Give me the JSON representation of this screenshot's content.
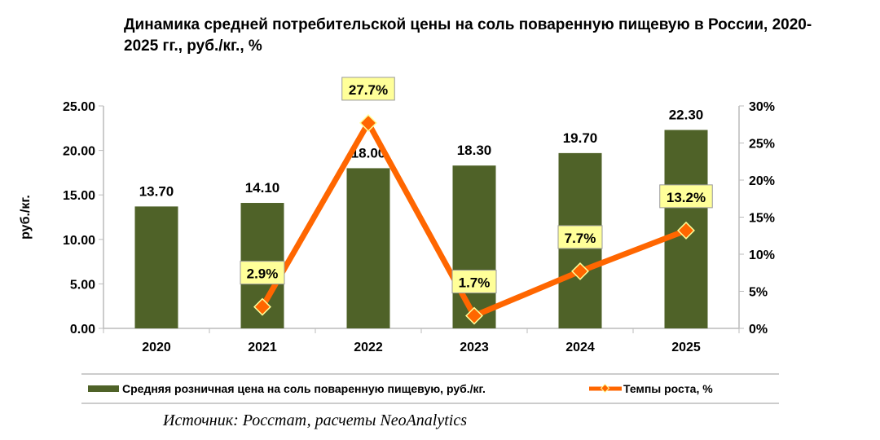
{
  "title": "Динамика средней потребительской цены на соль поваренную пищевую в России, 2020-2025 гг., руб./кг., %",
  "source": "Источник: Росстат, расчеты NeoAnalytics",
  "chart_data": {
    "type": "bar+line",
    "title": "Динамика средней потребительской цены на соль поваренную пищевую в России, 2020-2025 гг., руб./кг., %",
    "categories": [
      "2020",
      "2021",
      "2022",
      "2023",
      "2024",
      "2025"
    ],
    "ylabel": "руб./кг.",
    "ylim": [
      0,
      25
    ],
    "yticks": [
      "0.00",
      "5.00",
      "10.00",
      "15.00",
      "20.00",
      "25.00"
    ],
    "y2lim": [
      0,
      30
    ],
    "y2ticks": [
      "0%",
      "5%",
      "10%",
      "15%",
      "20%",
      "25%",
      "30%"
    ],
    "legend_position": "bottom",
    "grid": false,
    "series": [
      {
        "name": "Средняя розничная цена на соль поваренную пищевую, руб./кг.",
        "kind": "bar",
        "axis": "left",
        "color": "#4f6228",
        "values": [
          13.7,
          14.1,
          18.0,
          18.3,
          19.7,
          22.3
        ],
        "labels": [
          "13.70",
          "14.10",
          "18.00",
          "18.30",
          "19.70",
          "22.30"
        ]
      },
      {
        "name": "Темпы роста, %",
        "kind": "line",
        "axis": "right",
        "color": "#ff6600",
        "marker": "diamond",
        "values": [
          null,
          2.9,
          27.7,
          1.7,
          7.7,
          13.2
        ],
        "labels": [
          "",
          "2.9%",
          "27.7%",
          "1.7%",
          "7.7%",
          "13.2%"
        ]
      }
    ]
  }
}
